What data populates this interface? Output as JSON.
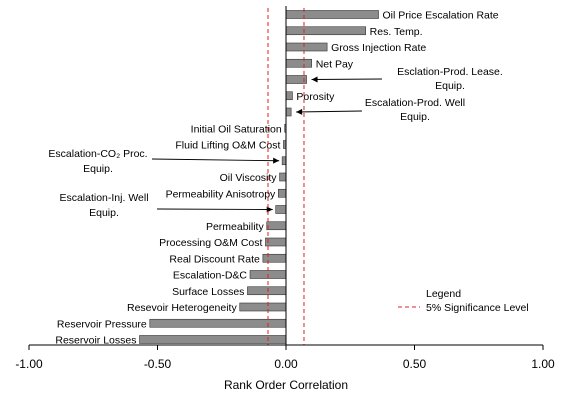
{
  "chart_data": {
    "type": "bar",
    "orientation": "horizontal",
    "xlabel": "Rank Order Correlation",
    "xlim": [
      -1.0,
      1.0
    ],
    "xticks": [
      {
        "value": -1.0,
        "label": "-1.00"
      },
      {
        "value": -0.5,
        "label": "-0.50"
      },
      {
        "value": 0.0,
        "label": "0.00"
      },
      {
        "value": 0.5,
        "label": "0.50"
      },
      {
        "value": 1.0,
        "label": "1.00"
      }
    ],
    "bar_color": "#8c8c8c",
    "significance_color": "#e02020",
    "significance_level": 0.07,
    "bars": [
      {
        "label": "Oil Price Escalation Rate",
        "value": 0.36
      },
      {
        "label": "Res. Temp.",
        "value": 0.31
      },
      {
        "label": "Gross Injection Rate",
        "value": 0.16
      },
      {
        "label": "Net Pay",
        "value": 0.1
      },
      {
        "label": "Esclation-Prod. Lease.",
        "label2": "Equip.",
        "value": 0.08
      },
      {
        "label": "Porosity",
        "value": 0.025
      },
      {
        "label": "Escalation-Prod. Well",
        "label2": "Equip.",
        "value": 0.02
      },
      {
        "label": "Initial Oil Saturation",
        "value": -0.005
      },
      {
        "label": "Fluid Lifting O&M Cost",
        "value": -0.01
      },
      {
        "label": "Escalation-CO₂ Proc.",
        "label2": "Equip.",
        "value": -0.015
      },
      {
        "label": "Oil Viscosity",
        "value": -0.025
      },
      {
        "label": "Permeability Anisotropy",
        "value": -0.03
      },
      {
        "label": "Escalation-Inj. Well",
        "label2": "Equip.",
        "value": -0.04
      },
      {
        "label": "Permeability",
        "value": -0.075
      },
      {
        "label": "Processing O&M Cost",
        "value": -0.08
      },
      {
        "label": "Real Discount Rate",
        "value": -0.09
      },
      {
        "label": "Escalation-D&C",
        "value": -0.14
      },
      {
        "label": "Surface Losses",
        "value": -0.15
      },
      {
        "label": "Resevoir Heterogeneity",
        "value": -0.18
      },
      {
        "label": "Reservoir Pressure",
        "value": -0.53
      },
      {
        "label": "Reservoir Losses",
        "value": -0.57
      }
    ],
    "legend": {
      "title": "Legend",
      "entry": "5% Significance Level",
      "placement": "bottom-right"
    }
  }
}
